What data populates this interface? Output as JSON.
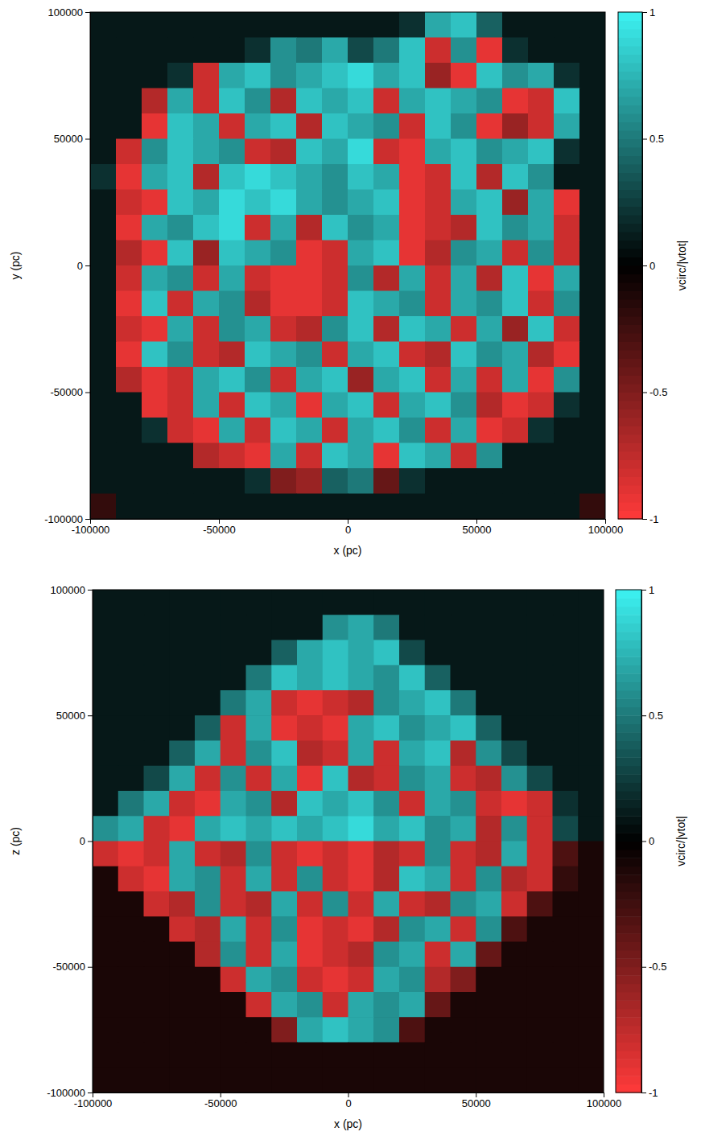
{
  "chart_data": [
    {
      "type": "heatmap",
      "xlabel": "x (pc)",
      "ylabel": "y (pc)",
      "xlim": [
        -100000,
        100000
      ],
      "ylim": [
        -100000,
        100000
      ],
      "xticks": [
        -100000,
        -50000,
        0,
        50000,
        100000
      ],
      "yticks": [
        -100000,
        -50000,
        0,
        50000,
        100000
      ],
      "x": [
        -95000,
        -85000,
        -75000,
        -65000,
        -55000,
        -45000,
        -35000,
        -25000,
        -15000,
        -5000,
        5000,
        15000,
        25000,
        35000,
        45000,
        55000,
        65000,
        75000,
        85000,
        95000
      ],
      "y": [
        95000,
        85000,
        75000,
        65000,
        55000,
        45000,
        35000,
        25000,
        15000,
        5000,
        -5000,
        -15000,
        -25000,
        -35000,
        -45000,
        -55000,
        -65000,
        -75000,
        -85000,
        -95000
      ],
      "cells": [
        [
          0.1,
          0.1,
          0.1,
          0.1,
          0.1,
          0.1,
          0.1,
          0.1,
          0.1,
          0.1,
          0.1,
          0.1,
          0.2,
          0.7,
          0.8,
          0.4,
          0.1,
          0.1,
          0.1,
          0.1
        ],
        [
          0.1,
          0.1,
          0.1,
          0.1,
          0.1,
          0.1,
          0.2,
          0.6,
          0.5,
          0.7,
          0.3,
          0.5,
          0.8,
          -0.8,
          0.6,
          -0.9,
          0.2,
          0.1,
          0.1,
          0.1
        ],
        [
          0.1,
          0.1,
          0.1,
          0.2,
          -0.8,
          0.7,
          0.8,
          0.6,
          0.7,
          0.8,
          0.9,
          0.7,
          0.8,
          -0.6,
          -0.9,
          0.8,
          0.6,
          0.7,
          0.2,
          0.1
        ],
        [
          0.1,
          0.1,
          -0.7,
          0.7,
          -0.8,
          0.8,
          0.6,
          -0.7,
          0.8,
          0.7,
          0.8,
          -0.8,
          0.7,
          0.8,
          0.7,
          0.6,
          -0.9,
          -0.8,
          0.8,
          0.1
        ],
        [
          0.1,
          0.1,
          -0.9,
          0.8,
          0.7,
          -0.8,
          0.7,
          0.8,
          -0.7,
          0.8,
          0.7,
          0.6,
          -0.8,
          0.8,
          0.6,
          -0.9,
          -0.6,
          -0.8,
          0.7,
          0.1
        ],
        [
          0.1,
          -0.8,
          0.6,
          0.8,
          0.7,
          0.6,
          -0.8,
          -0.7,
          0.8,
          0.7,
          0.9,
          -0.8,
          -0.9,
          0.7,
          0.8,
          0.6,
          0.7,
          0.8,
          0.2,
          0.1
        ],
        [
          0.2,
          -0.9,
          0.7,
          0.8,
          -0.7,
          0.8,
          0.9,
          0.8,
          0.7,
          0.6,
          0.8,
          0.7,
          -0.9,
          -0.8,
          0.8,
          -0.7,
          0.8,
          0.6,
          0.1,
          0.1
        ],
        [
          0.1,
          -0.8,
          -0.9,
          0.8,
          0.7,
          0.9,
          0.8,
          0.9,
          0.7,
          0.6,
          0.7,
          0.8,
          -0.9,
          -0.8,
          0.7,
          0.8,
          -0.6,
          0.7,
          -0.9,
          0.1
        ],
        [
          0.1,
          -0.9,
          0.7,
          0.6,
          0.8,
          0.9,
          -0.8,
          0.7,
          -0.7,
          0.8,
          0.6,
          0.7,
          -0.9,
          -0.8,
          -0.7,
          0.8,
          0.6,
          0.7,
          -0.8,
          0.1
        ],
        [
          0.1,
          -0.7,
          -0.9,
          0.8,
          -0.6,
          0.8,
          0.7,
          0.6,
          -0.9,
          -0.8,
          0.7,
          0.8,
          -0.9,
          -0.7,
          0.6,
          0.7,
          -0.8,
          0.6,
          -0.8,
          0.1
        ],
        [
          0.1,
          -0.8,
          0.7,
          0.6,
          -0.8,
          0.7,
          -0.8,
          -0.9,
          -0.9,
          -0.8,
          0.6,
          -0.7,
          0.7,
          -0.8,
          0.7,
          -0.7,
          0.8,
          -0.9,
          0.7,
          0.1
        ],
        [
          0.1,
          -0.9,
          0.8,
          -0.8,
          0.7,
          0.6,
          -0.7,
          -0.9,
          -0.9,
          -0.8,
          0.8,
          0.7,
          0.6,
          -0.8,
          0.7,
          0.6,
          0.8,
          -0.8,
          0.6,
          0.1
        ],
        [
          0.1,
          -0.8,
          -0.9,
          0.7,
          -0.8,
          0.6,
          0.7,
          -0.8,
          -0.7,
          0.6,
          0.8,
          -0.7,
          0.8,
          0.7,
          -0.8,
          0.7,
          -0.6,
          0.8,
          -0.8,
          0.1
        ],
        [
          0.1,
          -0.9,
          0.8,
          0.6,
          -0.8,
          -0.7,
          0.8,
          0.7,
          0.6,
          -0.8,
          0.7,
          0.8,
          -0.8,
          -0.7,
          0.8,
          0.6,
          0.7,
          -0.7,
          -0.9,
          0.1
        ],
        [
          0.1,
          -0.7,
          -0.9,
          -0.8,
          0.7,
          0.8,
          0.6,
          -0.8,
          0.7,
          0.8,
          -0.6,
          0.7,
          0.8,
          -0.8,
          0.7,
          -0.8,
          0.7,
          -0.9,
          0.6,
          0.1
        ],
        [
          0.1,
          0.1,
          -0.9,
          -0.8,
          0.7,
          -0.8,
          0.8,
          0.7,
          -0.9,
          0.7,
          0.8,
          -0.8,
          0.7,
          0.8,
          0.6,
          -0.7,
          -0.9,
          -0.8,
          0.2,
          0.1
        ],
        [
          0.1,
          0.1,
          0.2,
          -0.8,
          -0.9,
          0.7,
          -0.8,
          0.8,
          0.7,
          -0.8,
          0.7,
          0.8,
          0.6,
          -0.8,
          0.7,
          -0.9,
          -0.8,
          0.2,
          0.1,
          0.1
        ],
        [
          0.1,
          0.1,
          0.1,
          0.1,
          -0.7,
          -0.8,
          -0.9,
          0.7,
          -0.8,
          0.8,
          0.7,
          -0.9,
          0.8,
          0.7,
          -0.8,
          0.6,
          0.1,
          0.1,
          0.1,
          0.1
        ],
        [
          0.1,
          0.1,
          0.1,
          0.1,
          0.1,
          0.1,
          0.2,
          -0.5,
          -0.6,
          0.4,
          0.5,
          -0.4,
          0.2,
          0.1,
          0.1,
          0.1,
          0.1,
          0.1,
          0.1,
          0.1
        ],
        [
          -0.2,
          0.1,
          0.1,
          0.1,
          0.1,
          0.1,
          0.1,
          0.1,
          0.1,
          0.1,
          0.1,
          0.1,
          0.1,
          0.1,
          0.1,
          0.1,
          0.1,
          0.1,
          0.1,
          -0.2
        ]
      ],
      "colorbar_label": "vcirc/|vtot|",
      "clim": [
        -1,
        1
      ],
      "cticks": [
        -1,
        -0.5,
        0,
        0.5,
        1
      ]
    },
    {
      "type": "heatmap",
      "xlabel": "x (pc)",
      "ylabel": "z (pc)",
      "xlim": [
        -100000,
        100000
      ],
      "ylim": [
        -100000,
        100000
      ],
      "xticks": [
        -100000,
        -50000,
        0,
        50000,
        100000
      ],
      "yticks": [
        -100000,
        -50000,
        0,
        50000,
        100000
      ],
      "x": [
        -95000,
        -85000,
        -75000,
        -65000,
        -55000,
        -45000,
        -35000,
        -25000,
        -15000,
        -5000,
        5000,
        15000,
        25000,
        35000,
        45000,
        55000,
        65000,
        75000,
        85000,
        95000
      ],
      "y": [
        95000,
        85000,
        75000,
        65000,
        55000,
        45000,
        35000,
        25000,
        15000,
        5000,
        -5000,
        -15000,
        -25000,
        -35000,
        -45000,
        -55000,
        -65000,
        -75000,
        -85000,
        -95000
      ],
      "cells": [
        [
          0.1,
          0.1,
          0.1,
          0.1,
          0.1,
          0.1,
          0.1,
          0.1,
          0.1,
          0.1,
          0.1,
          0.1,
          0.1,
          0.1,
          0.1,
          0.1,
          0.1,
          0.1,
          0.1,
          0.1
        ],
        [
          0.1,
          0.1,
          0.1,
          0.1,
          0.1,
          0.1,
          0.1,
          0.1,
          0.1,
          0.6,
          0.7,
          0.5,
          0.1,
          0.1,
          0.1,
          0.1,
          0.1,
          0.1,
          0.1,
          0.1
        ],
        [
          0.1,
          0.1,
          0.1,
          0.1,
          0.1,
          0.1,
          0.1,
          0.4,
          0.7,
          0.8,
          0.7,
          0.8,
          0.3,
          0.1,
          0.1,
          0.1,
          0.1,
          0.1,
          0.1,
          0.1
        ],
        [
          0.1,
          0.1,
          0.1,
          0.1,
          0.1,
          0.1,
          0.5,
          0.8,
          0.7,
          0.8,
          0.7,
          0.6,
          0.8,
          0.4,
          0.1,
          0.1,
          0.1,
          0.1,
          0.1,
          0.1
        ],
        [
          0.1,
          0.1,
          0.1,
          0.1,
          0.1,
          0.5,
          0.7,
          -0.8,
          -0.9,
          -0.8,
          -0.7,
          0.6,
          0.7,
          0.8,
          0.5,
          0.1,
          0.1,
          0.1,
          0.1,
          0.1
        ],
        [
          0.1,
          0.1,
          0.1,
          0.1,
          0.4,
          -0.8,
          0.7,
          -0.9,
          -0.8,
          -0.9,
          0.7,
          0.8,
          0.6,
          0.7,
          0.8,
          0.4,
          0.1,
          0.1,
          0.1,
          0.1
        ],
        [
          0.1,
          0.1,
          0.1,
          0.4,
          0.7,
          -0.8,
          0.6,
          0.8,
          -0.7,
          -0.8,
          0.7,
          -0.8,
          0.7,
          0.8,
          -0.7,
          0.6,
          0.3,
          0.1,
          0.1,
          0.1
        ],
        [
          0.1,
          0.1,
          0.3,
          0.7,
          -0.8,
          0.6,
          -0.8,
          0.7,
          -0.9,
          0.8,
          -0.7,
          -0.8,
          0.6,
          0.7,
          -0.8,
          -0.7,
          0.6,
          0.3,
          0.1,
          0.1
        ],
        [
          0.1,
          0.5,
          0.7,
          -0.8,
          -0.9,
          0.7,
          0.6,
          -0.7,
          0.8,
          0.7,
          0.8,
          0.6,
          -0.8,
          0.7,
          0.6,
          -0.8,
          -0.9,
          -0.8,
          0.2,
          0.1
        ],
        [
          0.6,
          0.7,
          -0.8,
          -0.9,
          0.7,
          0.8,
          0.7,
          0.8,
          0.7,
          0.8,
          0.9,
          0.7,
          0.8,
          0.6,
          0.7,
          -0.7,
          0.6,
          -0.8,
          0.3,
          0.1
        ],
        [
          -0.8,
          -0.9,
          -0.8,
          0.7,
          -0.8,
          -0.7,
          0.6,
          -0.8,
          -0.9,
          -0.8,
          -0.9,
          -0.7,
          -0.8,
          0.6,
          -0.8,
          -0.7,
          0.7,
          -0.8,
          -0.3,
          -0.1
        ],
        [
          -0.1,
          -0.8,
          -0.9,
          0.7,
          0.6,
          -0.8,
          0.7,
          -0.8,
          0.6,
          -0.8,
          -0.9,
          -0.7,
          0.8,
          0.7,
          -0.8,
          0.6,
          -0.7,
          -0.8,
          -0.2,
          -0.1
        ],
        [
          -0.1,
          -0.1,
          -0.8,
          -0.7,
          0.6,
          -0.8,
          -0.7,
          0.7,
          -0.8,
          0.6,
          -0.8,
          0.7,
          -0.8,
          -0.7,
          0.6,
          0.7,
          -0.8,
          -0.3,
          -0.1,
          -0.1
        ],
        [
          -0.1,
          -0.1,
          -0.1,
          -0.8,
          -0.7,
          0.7,
          -0.8,
          0.6,
          -0.9,
          -0.8,
          -0.9,
          -0.7,
          0.6,
          0.7,
          -0.8,
          0.6,
          -0.3,
          -0.1,
          -0.1,
          -0.1
        ],
        [
          -0.1,
          -0.1,
          -0.1,
          -0.1,
          -0.7,
          0.6,
          -0.8,
          0.7,
          -0.9,
          -0.8,
          -0.7,
          0.6,
          0.7,
          -0.8,
          0.7,
          -0.4,
          -0.1,
          -0.1,
          -0.1,
          -0.1
        ],
        [
          -0.1,
          -0.1,
          -0.1,
          -0.1,
          -0.1,
          -0.8,
          0.7,
          0.6,
          -0.8,
          -0.9,
          -0.8,
          0.7,
          0.6,
          -0.7,
          -0.5,
          -0.1,
          -0.1,
          -0.1,
          -0.1,
          -0.1
        ],
        [
          -0.1,
          -0.1,
          -0.1,
          -0.1,
          -0.1,
          -0.1,
          -0.8,
          0.7,
          0.6,
          -0.8,
          0.7,
          0.6,
          0.7,
          -0.4,
          -0.1,
          -0.1,
          -0.1,
          -0.1,
          -0.1,
          -0.1
        ],
        [
          -0.1,
          -0.1,
          -0.1,
          -0.1,
          -0.1,
          -0.1,
          -0.1,
          -0.5,
          0.7,
          0.8,
          0.7,
          0.6,
          -0.3,
          -0.1,
          -0.1,
          -0.1,
          -0.1,
          -0.1,
          -0.1,
          -0.1
        ],
        [
          -0.1,
          -0.1,
          -0.1,
          -0.1,
          -0.1,
          -0.1,
          -0.1,
          -0.1,
          -0.1,
          -0.1,
          -0.1,
          -0.1,
          -0.1,
          -0.1,
          -0.1,
          -0.1,
          -0.1,
          -0.1,
          -0.1,
          -0.1
        ],
        [
          -0.1,
          -0.1,
          -0.1,
          -0.1,
          -0.1,
          -0.1,
          -0.1,
          -0.1,
          -0.1,
          -0.1,
          -0.1,
          -0.1,
          -0.1,
          -0.1,
          -0.1,
          -0.1,
          -0.1,
          -0.1,
          -0.1,
          -0.1
        ]
      ],
      "colorbar_label": "vcirc/|vtot|",
      "clim": [
        -1,
        1
      ],
      "cticks": [
        -1,
        -0.5,
        0,
        0.5,
        1
      ]
    }
  ]
}
